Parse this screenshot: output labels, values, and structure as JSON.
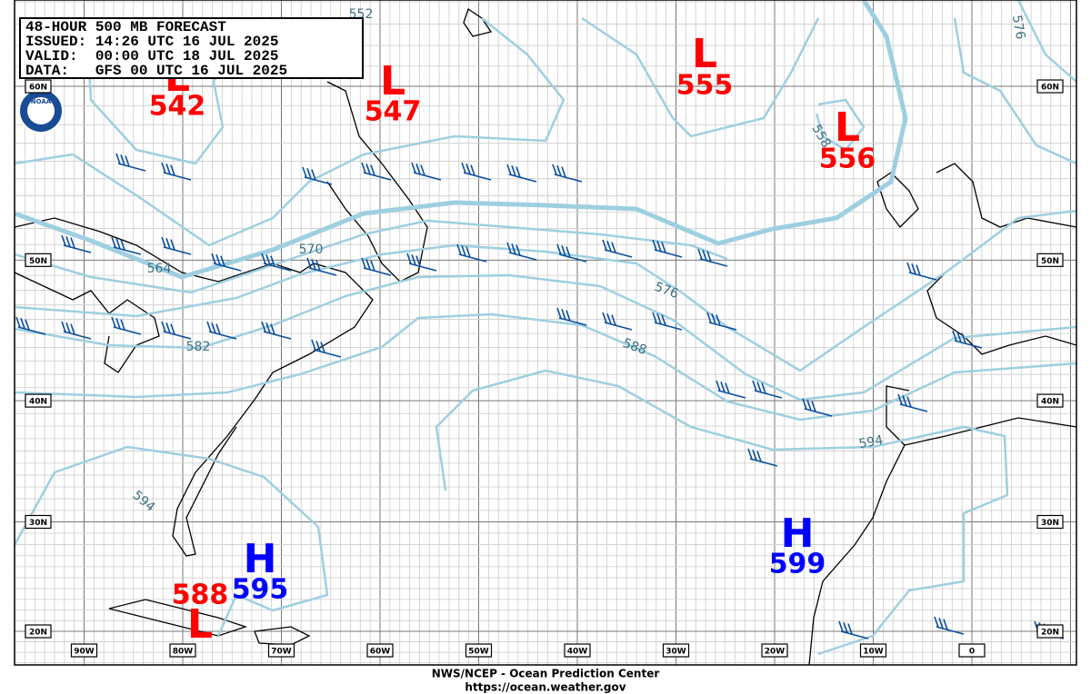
{
  "header": {
    "lines": [
      "48-HOUR 500 MB FORECAST",
      "ISSUED: 14:26 UTC 16 JUL 2025",
      "VALID:  00:00 UTC 18 JUL 2025",
      "DATA:   GFS 00 UTC 16 JUL 2025"
    ]
  },
  "logo": "NOAA",
  "centers": [
    {
      "label": "L",
      "value": "542"
    },
    {
      "label": "L",
      "value": "547"
    },
    {
      "label": "L",
      "value": "555"
    },
    {
      "label": "L",
      "value": "556"
    },
    {
      "label": "H",
      "value": "595"
    },
    {
      "label": "L",
      "value": "588"
    },
    {
      "label": "H",
      "value": "599"
    }
  ],
  "contour_labels": [
    "552",
    "576",
    "558",
    "570",
    "564",
    "576",
    "582",
    "588",
    "594",
    "594"
  ],
  "latitude_labels": [
    "60N",
    "50N",
    "40N",
    "30N",
    "20N"
  ],
  "longitude_labels": [
    "90W",
    "80W",
    "70W",
    "60W",
    "50W",
    "40W",
    "30W",
    "20W",
    "10W",
    "0"
  ],
  "footer": [
    "NWS/NCEP - Ocean Prediction Center",
    "https://ocean.weather.gov"
  ]
}
